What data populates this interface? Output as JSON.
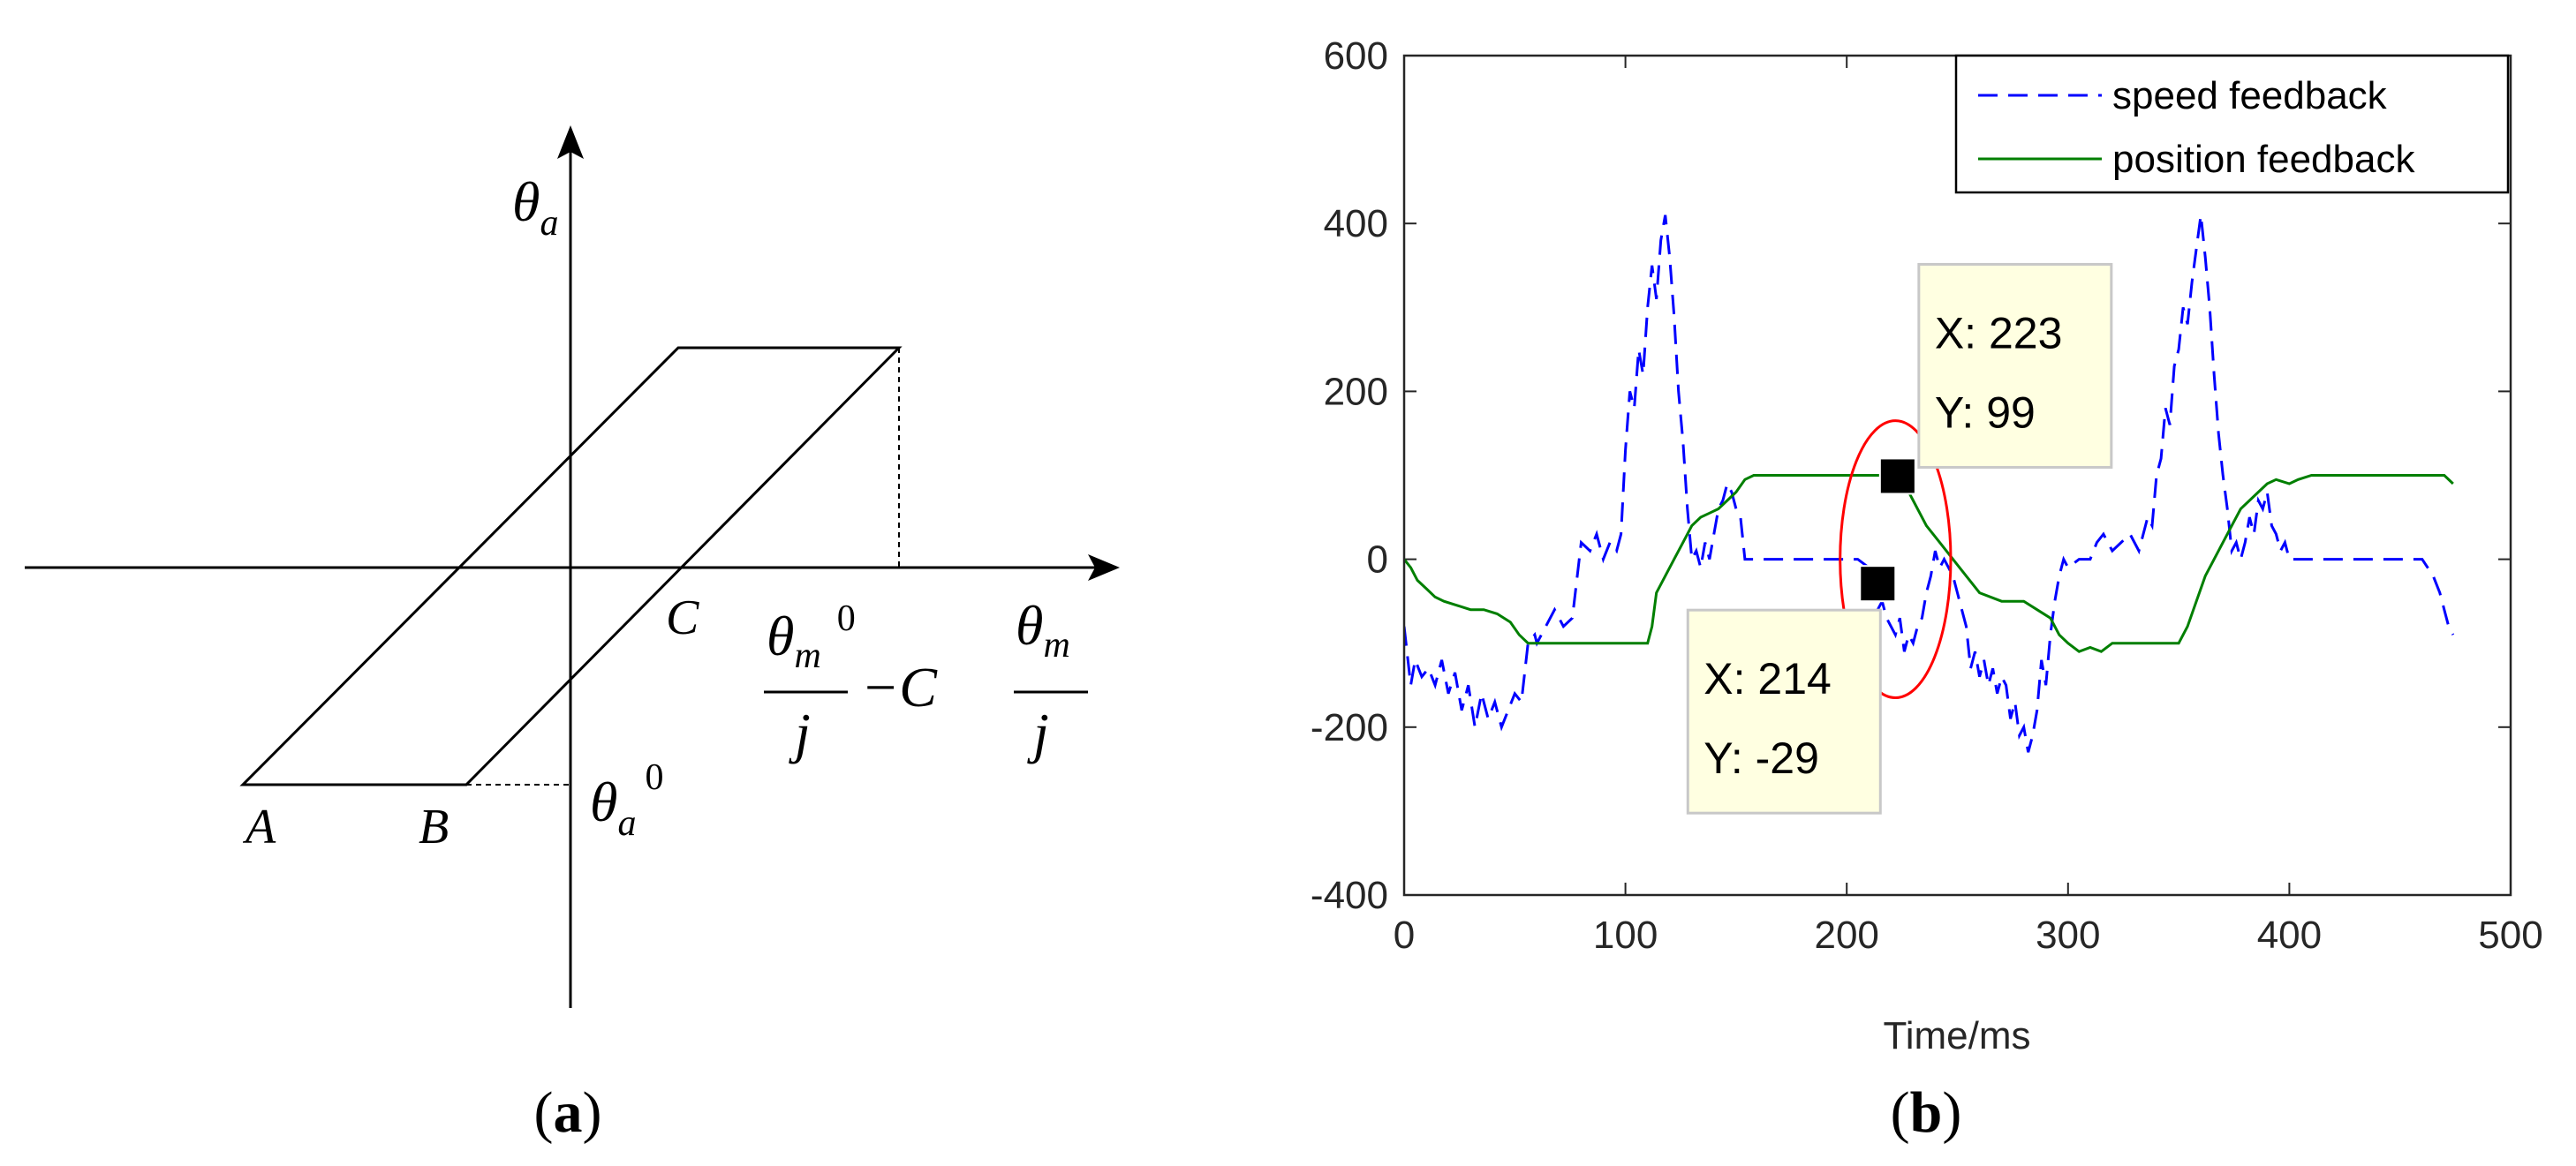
{
  "panel_a": {
    "caption_open": "(",
    "caption_letter": "a",
    "caption_close": ")",
    "y_axis_symbol": "θ",
    "y_axis_sub": "a",
    "x_axis_symbol": "θ",
    "x_axis_sub": "m",
    "x_axis_den": "j",
    "point_a": "A",
    "point_b": "B",
    "point_c": "C",
    "corner_symbol": "θ",
    "corner_sub": "a",
    "corner_sup": "0",
    "limit_symbol": "θ",
    "limit_sub": "m",
    "limit_sup": "0",
    "limit_den": "j",
    "limit_minus": "−C"
  },
  "chart_data": {
    "type": "line",
    "caption_open": "(",
    "caption_letter": "b",
    "caption_close": ")",
    "xlabel": "Time/ms",
    "ylabel": "",
    "xlim": [
      0,
      500
    ],
    "ylim": [
      -400,
      600
    ],
    "x_ticks": [
      0,
      100,
      200,
      300,
      400,
      500
    ],
    "y_ticks": [
      -400,
      -200,
      0,
      200,
      400,
      600
    ],
    "grid": false,
    "legend_position": "top-right",
    "series": [
      {
        "name": "speed feedback",
        "color": "#0000ff",
        "style": "dashed",
        "x": [
          0,
          3,
          5,
          8,
          11,
          14,
          17,
          20,
          23,
          26,
          29,
          32,
          35,
          38,
          41,
          44,
          47,
          50,
          53,
          56,
          59,
          60,
          62,
          64,
          68,
          72,
          76,
          80,
          84,
          87,
          90,
          93,
          96,
          98,
          100,
          102,
          104,
          106,
          108,
          110,
          112,
          114,
          116,
          118,
          120,
          122,
          124,
          126,
          128,
          130,
          132,
          134,
          136,
          138,
          140,
          142,
          144,
          146,
          148,
          150,
          152,
          154,
          160,
          170,
          180,
          190,
          200,
          205,
          210,
          212,
          214,
          216,
          218,
          220,
          222,
          224,
          226,
          228,
          230,
          232,
          234,
          236,
          238,
          240,
          242,
          244,
          246,
          248,
          250,
          252,
          254,
          256,
          258,
          260,
          262,
          264,
          266,
          268,
          270,
          272,
          274,
          276,
          278,
          280,
          282,
          284,
          286,
          288,
          290,
          292,
          294,
          296,
          298,
          300,
          305,
          310,
          313,
          316,
          320,
          324,
          328,
          332,
          336,
          338,
          340,
          342,
          344,
          346,
          348,
          350,
          352,
          354,
          356,
          358,
          360,
          362,
          364,
          366,
          368,
          370,
          372,
          374,
          376,
          378,
          380,
          382,
          384,
          386,
          388,
          390,
          392,
          394,
          396,
          398,
          400,
          402,
          406,
          410,
          420,
          430,
          440,
          450,
          460,
          465,
          468,
          470,
          472,
          474
        ],
        "y": [
          -80,
          -150,
          -120,
          -140,
          -130,
          -150,
          -120,
          -160,
          -135,
          -180,
          -150,
          -200,
          -160,
          -190,
          -170,
          -200,
          -180,
          -160,
          -170,
          -100,
          -90,
          -100,
          -90,
          -80,
          -60,
          -80,
          -70,
          20,
          10,
          30,
          0,
          20,
          10,
          30,
          130,
          200,
          180,
          250,
          220,
          300,
          350,
          310,
          380,
          410,
          360,
          290,
          200,
          140,
          60,
          0,
          10,
          -10,
          20,
          0,
          30,
          60,
          70,
          90,
          80,
          60,
          50,
          0,
          0,
          0,
          0,
          0,
          0,
          0,
          -10,
          -30,
          -60,
          -50,
          -70,
          -80,
          -90,
          -70,
          -110,
          -90,
          -100,
          -80,
          -70,
          -40,
          -20,
          10,
          -10,
          0,
          -10,
          -20,
          -40,
          -60,
          -80,
          -130,
          -110,
          -140,
          -120,
          -150,
          -130,
          -160,
          -140,
          -150,
          -190,
          -170,
          -210,
          -200,
          -230,
          -210,
          -180,
          -120,
          -150,
          -90,
          -50,
          -20,
          0,
          -10,
          0,
          0,
          20,
          30,
          10,
          20,
          30,
          10,
          50,
          40,
          100,
          120,
          180,
          160,
          230,
          250,
          300,
          280,
          330,
          370,
          410,
          360,
          300,
          220,
          150,
          100,
          60,
          10,
          20,
          0,
          20,
          50,
          30,
          70,
          60,
          80,
          40,
          30,
          10,
          20,
          0,
          0,
          0,
          0,
          0,
          0,
          0,
          0,
          0,
          -20,
          -40,
          -60,
          -80,
          -90
        ]
      },
      {
        "name": "position feedback",
        "color": "#007f00",
        "style": "solid",
        "x": [
          0,
          3,
          6,
          10,
          14,
          18,
          24,
          30,
          36,
          42,
          48,
          52,
          56,
          70,
          90,
          104,
          110,
          112,
          114,
          118,
          122,
          126,
          130,
          134,
          138,
          142,
          146,
          150,
          154,
          158,
          170,
          190,
          210,
          220,
          223,
          226,
          230,
          236,
          242,
          248,
          254,
          260,
          270,
          280,
          286,
          292,
          296,
          300,
          305,
          310,
          315,
          320,
          330,
          344,
          350,
          354,
          358,
          362,
          366,
          370,
          374,
          378,
          382,
          386,
          390,
          394,
          400,
          404,
          410,
          420,
          440,
          460,
          470,
          474
        ],
        "y": [
          0,
          -10,
          -25,
          -35,
          -45,
          -50,
          -55,
          -60,
          -60,
          -65,
          -75,
          -90,
          -100,
          -100,
          -100,
          -100,
          -100,
          -80,
          -40,
          -20,
          0,
          20,
          40,
          50,
          55,
          60,
          70,
          80,
          95,
          100,
          100,
          100,
          100,
          100,
          99,
          90,
          70,
          40,
          20,
          0,
          -20,
          -40,
          -50,
          -50,
          -60,
          -70,
          -90,
          -100,
          -110,
          -105,
          -110,
          -100,
          -100,
          -100,
          -100,
          -80,
          -50,
          -20,
          0,
          20,
          40,
          60,
          70,
          80,
          90,
          95,
          90,
          95,
          100,
          100,
          100,
          100,
          100,
          90
        ]
      }
    ],
    "annotations": [
      {
        "x_label": "X: 223",
        "y_label": "Y: 99",
        "x": 223,
        "y": 99
      },
      {
        "x_label": "X: 214",
        "y_label": "Y: -29",
        "x": 214,
        "y": -29
      }
    ],
    "highlight_ellipse": {
      "x": 222,
      "y": 0,
      "rx": 25,
      "ry": 165,
      "color": "#ff0000"
    }
  }
}
